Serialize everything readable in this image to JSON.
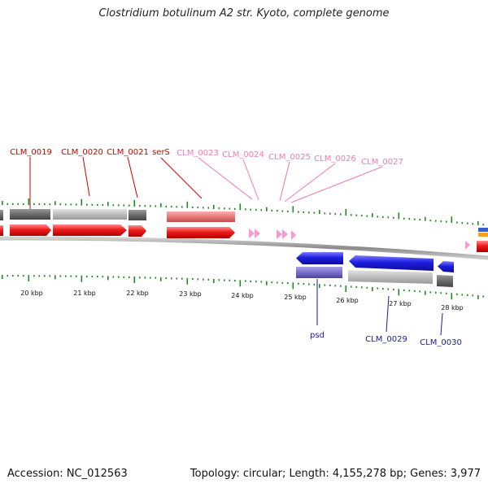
{
  "title": "Clostridium botulinum A2 str. Kyoto, complete genome",
  "footer": {
    "accession": "Accession: NC_012563",
    "stats": "Topology: circular; Length: 4,155,278 bp; Genes: 3,977"
  },
  "colors": {
    "ticks": "#1f8a1f",
    "red_label": "#cc0000",
    "pink_label": "#f07ab0",
    "blue_label": "#1a1aa8",
    "cds_red": "#ee1c1c",
    "cds_blue": "#1f1fe0",
    "gene_dark": "#6f6f6f",
    "gene_light": "#bdbdbd",
    "rna_pink": "#f79ad0"
  },
  "top_labels": [
    {
      "text": "CLM_0019",
      "color": "red"
    },
    {
      "text": "CLM_0020",
      "color": "red"
    },
    {
      "text": "CLM_0021",
      "color": "red"
    },
    {
      "text": "serS",
      "color": "red"
    },
    {
      "text": "CLM_0023",
      "color": "pink"
    },
    {
      "text": "CLM_0024",
      "color": "pink"
    },
    {
      "text": "CLM_0025",
      "color": "pink"
    },
    {
      "text": "CLM_0026",
      "color": "pink"
    },
    {
      "text": "CLM_0027",
      "color": "pink"
    }
  ],
  "kbp_labels": [
    "20 kbp",
    "21 kbp",
    "22 kbp",
    "23 kbp",
    "24 kbp",
    "25 kbp",
    "26 kbp",
    "27 kbp",
    "28 kbp"
  ],
  "bottom_labels": [
    "psd",
    "CLM_0029",
    "CLM_0030"
  ]
}
